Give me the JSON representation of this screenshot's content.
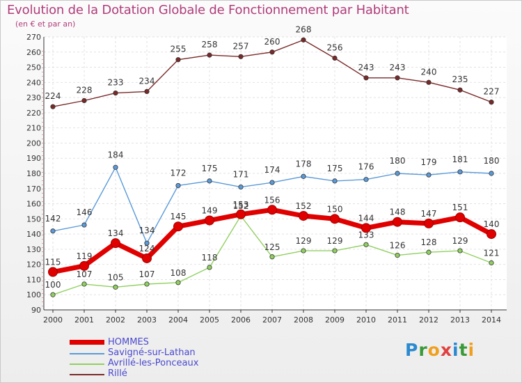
{
  "chart_data": {
    "type": "line",
    "title": "Evolution de la Dotation Globale de Fonctionnement par Habitant",
    "subtitle": "(en € et par an)",
    "x": [
      "2000",
      "2001",
      "2002",
      "2003",
      "2004",
      "2005",
      "2006",
      "2007",
      "2008",
      "2009",
      "2010",
      "2011",
      "2012",
      "2013",
      "2014"
    ],
    "ylim": [
      90,
      270
    ],
    "yticks": [
      90,
      100,
      110,
      120,
      130,
      140,
      150,
      160,
      170,
      180,
      190,
      200,
      210,
      220,
      230,
      240,
      250,
      260,
      270
    ],
    "grid": true,
    "legend_position": "bottom-left",
    "series": [
      {
        "name": "HOMMES",
        "color": "#e00000",
        "values": [
          115,
          119,
          134,
          124,
          145,
          149,
          153,
          156,
          152,
          150,
          144,
          148,
          147,
          151,
          140
        ]
      },
      {
        "name": "Savigné-sur-Lathan",
        "color": "#5a9ad8",
        "values": [
          142,
          146,
          184,
          134,
          172,
          175,
          171,
          174,
          178,
          175,
          176,
          180,
          179,
          181,
          180
        ]
      },
      {
        "name": "Avrillé-les-Ponceaux",
        "color": "#90d060",
        "values": [
          100,
          107,
          105,
          107,
          108,
          118,
          152,
          125,
          129,
          129,
          133,
          126,
          128,
          129,
          121
        ]
      },
      {
        "name": "Rillé",
        "color": "#7a2828",
        "values": [
          224,
          228,
          233,
          234,
          255,
          258,
          257,
          260,
          268,
          256,
          243,
          243,
          240,
          235,
          227
        ]
      }
    ]
  },
  "logo": {
    "letters": [
      "P",
      "r",
      "o",
      "x",
      "i",
      "t",
      "i"
    ],
    "colors": [
      "#2a8ad0",
      "#3a9a3a",
      "#f0a020",
      "#e04040",
      "#2a8ad0",
      "#3a9a3a",
      "#f0a020"
    ]
  }
}
